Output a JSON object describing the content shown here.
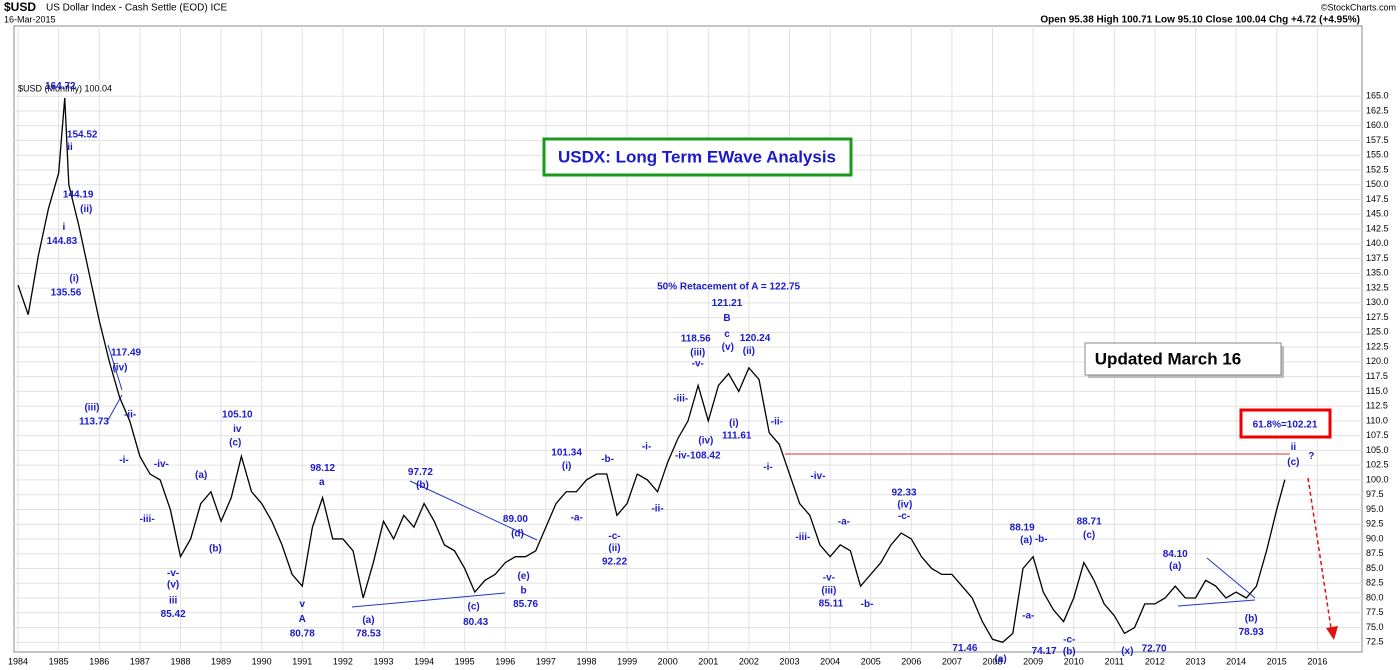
{
  "header": {
    "symbol": "$USD",
    "name": "US Dollar Index - Cash Settle (EOD) ICE",
    "date": "16-Mar-2015",
    "copyright": "©StockCharts.com",
    "quote": "Open 95.38 High 100.71 Low 95.10 Close 100.04 Chg +4.72 (+4.95%)"
  },
  "boxes": {
    "title": "USDX: Long Term EWave Analysis",
    "updated": "Updated March 16",
    "target": "61.8%=102.21"
  },
  "chart_data": {
    "type": "line",
    "xlim": [
      1983.9,
      2017.1
    ],
    "xticks": [
      1984,
      1985,
      1986,
      1987,
      1988,
      1989,
      1990,
      1991,
      1992,
      1993,
      1994,
      1995,
      1996,
      1997,
      1998,
      1999,
      2000,
      2001,
      2002,
      2003,
      2004,
      2005,
      2006,
      2007,
      2008,
      2009,
      2010,
      2011,
      2012,
      2013,
      2014,
      2015,
      2016
    ],
    "ylim": [
      70.85,
      176.9
    ],
    "yticks": [
      72.5,
      {
        "value": 75,
        "label": "75.0"
      },
      77.5,
      {
        "value": 80,
        "label": "80.0"
      },
      82.5,
      {
        "value": 85,
        "label": "85.0"
      },
      87.5,
      {
        "value": 90,
        "label": "90.0"
      },
      92.5,
      {
        "value": 95,
        "label": "95.0"
      },
      97.5,
      {
        "value": 100,
        "label": "100.0"
      },
      102.5,
      {
        "value": 105,
        "label": "105.0"
      },
      107.5,
      {
        "value": 110,
        "label": "110.0"
      },
      112.5,
      {
        "value": 115,
        "label": "115.0"
      },
      117.5,
      {
        "value": 120,
        "label": "120.0"
      },
      122.5,
      {
        "value": 125,
        "label": "125.0"
      },
      127.5,
      {
        "value": 130,
        "label": "130.0"
      },
      132.5,
      {
        "value": 135,
        "label": "135.0"
      },
      137.5,
      {
        "value": 140,
        "label": "140.0"
      },
      142.5,
      {
        "value": 145,
        "label": "145.0"
      },
      147.5,
      {
        "value": 150,
        "label": "150.0"
      },
      152.5,
      {
        "value": 155,
        "label": "155.0"
      },
      157.5,
      {
        "value": 160,
        "label": "160.0"
      },
      162.5,
      {
        "value": 165,
        "label": "165.0"
      }
    ],
    "grid": true,
    "x": [
      1984,
      1984.25,
      1984.5,
      1984.75,
      1985,
      1985.15,
      1985.25,
      1985.5,
      1985.75,
      1986,
      1986.25,
      1986.5,
      1986.75,
      1987,
      1987.25,
      1987.5,
      1987.75,
      1988,
      1988.25,
      1988.5,
      1988.75,
      1989,
      1989.25,
      1989.5,
      1989.75,
      1990,
      1990.25,
      1990.5,
      1990.75,
      1991,
      1991.25,
      1991.5,
      1991.75,
      1992,
      1992.25,
      1992.5,
      1992.75,
      1993,
      1993.25,
      1993.5,
      1993.75,
      1994,
      1994.25,
      1994.5,
      1994.75,
      1995,
      1995.25,
      1995.5,
      1995.75,
      1996,
      1996.25,
      1996.5,
      1996.75,
      1997,
      1997.25,
      1997.5,
      1997.75,
      1998,
      1998.25,
      1998.5,
      1998.75,
      1999,
      1999.25,
      1999.5,
      1999.75,
      2000,
      2000.25,
      2000.5,
      2000.75,
      2001,
      2001.25,
      2001.5,
      2001.75,
      2002,
      2002.25,
      2002.5,
      2002.75,
      2003,
      2003.25,
      2003.5,
      2003.75,
      2004,
      2004.25,
      2004.5,
      2004.75,
      2005,
      2005.25,
      2005.5,
      2005.75,
      2006,
      2006.25,
      2006.5,
      2006.75,
      2007,
      2007.25,
      2007.5,
      2007.75,
      2008,
      2008.25,
      2008.5,
      2008.75,
      2009,
      2009.25,
      2009.5,
      2009.75,
      2010,
      2010.25,
      2010.5,
      2010.75,
      2011,
      2011.25,
      2011.5,
      2011.75,
      2012,
      2012.25,
      2012.5,
      2012.75,
      2013,
      2013.25,
      2013.5,
      2013.75,
      2014,
      2014.25,
      2014.5,
      2014.75,
      2015,
      2015.2
    ],
    "series": [
      {
        "name": "$USD (Monthly) 100.04",
        "color": "#000000",
        "values": [
          133,
          128,
          138,
          146,
          152,
          164.72,
          150,
          143,
          135,
          127,
          120,
          114,
          110,
          104,
          101,
          100,
          95,
          87,
          90,
          96,
          98,
          93,
          97,
          104,
          98,
          96,
          93,
          89,
          84,
          82,
          92,
          97,
          90,
          90,
          88,
          80,
          86,
          93,
          90,
          94,
          92,
          96,
          93,
          89,
          88,
          85,
          81,
          83,
          84,
          86,
          87,
          87,
          88,
          92,
          96,
          98,
          98,
          100,
          101,
          101,
          94,
          96,
          101,
          100,
          98,
          103,
          107,
          110,
          116,
          110,
          116,
          118,
          115,
          119,
          117,
          108,
          106,
          101,
          96,
          94,
          89,
          87,
          89,
          88,
          82,
          84,
          86,
          89,
          91,
          90,
          87,
          85,
          84,
          84,
          82,
          80,
          76,
          73,
          72.5,
          74,
          85,
          87,
          81,
          78,
          76,
          80,
          86,
          83,
          79,
          77,
          74,
          75,
          79,
          79,
          80,
          82,
          80,
          80,
          83,
          82,
          80,
          81,
          80,
          82,
          88,
          95,
          100.04
        ]
      }
    ],
    "annotations": [
      {
        "text": "164.72",
        "x": 1985.04,
        "y": 166.7
      },
      {
        "text": "154.52",
        "x": 1985.58,
        "y": 158.5
      },
      {
        "text": "ii",
        "x": 1985.28,
        "y": 156.3
      },
      {
        "text": "144.19",
        "x": 1985.48,
        "y": 148.3
      },
      {
        "text": "(ii)",
        "x": 1985.68,
        "y": 145.8
      },
      {
        "text": "i",
        "x": 1985.13,
        "y": 142.8
      },
      {
        "text": "144.83",
        "x": 1985.08,
        "y": 140.4
      },
      {
        "text": "(i)",
        "x": 1985.38,
        "y": 134.1
      },
      {
        "text": "135.56",
        "x": 1985.18,
        "y": 131.7
      },
      {
        "text": "117.49",
        "x": 1986.66,
        "y": 121.5
      },
      {
        "text": "(iv)",
        "x": 1986.51,
        "y": 119
      },
      {
        "text": "(iii)",
        "x": 1985.82,
        "y": 112.2
      },
      {
        "text": "113.73",
        "x": 1985.87,
        "y": 109.8
      },
      {
        "text": "-ii-",
        "x": 1986.76,
        "y": 111
      },
      {
        "text": "-i-",
        "x": 1986.61,
        "y": 103.3
      },
      {
        "text": "-iv-",
        "x": 1987.53,
        "y": 102.6
      },
      {
        "text": "-iii-",
        "x": 1987.18,
        "y": 93.3
      },
      {
        "text": "(a)",
        "x": 1988.51,
        "y": 100.8
      },
      {
        "text": "(b)",
        "x": 1988.86,
        "y": 88.3
      },
      {
        "text": "105.10",
        "x": 1989.4,
        "y": 111
      },
      {
        "text": "iv",
        "x": 1989.4,
        "y": 108.6
      },
      {
        "text": "(c)",
        "x": 1989.35,
        "y": 106.3
      },
      {
        "text": "-v-",
        "x": 1987.82,
        "y": 84.2
      },
      {
        "text": "(v)",
        "x": 1987.82,
        "y": 82.2
      },
      {
        "text": "iii",
        "x": 1987.82,
        "y": 79.5
      },
      {
        "text": "85.42",
        "x": 1987.82,
        "y": 77.2
      },
      {
        "text": "98.12",
        "x": 1991.5,
        "y": 102
      },
      {
        "text": "a",
        "x": 1991.48,
        "y": 99.6
      },
      {
        "text": "v",
        "x": 1991,
        "y": 78.9
      },
      {
        "text": "A",
        "x": 1991,
        "y": 76.4
      },
      {
        "text": "80.78",
        "x": 1991,
        "y": 73.9
      },
      {
        "text": "(a)",
        "x": 1992.63,
        "y": 76.2
      },
      {
        "text": "78.53",
        "x": 1992.63,
        "y": 73.9
      },
      {
        "text": "97.72",
        "x": 1993.91,
        "y": 101.3
      },
      {
        "text": "(b)",
        "x": 1993.96,
        "y": 99.1
      },
      {
        "text": "(c)",
        "x": 1995.22,
        "y": 78.5
      },
      {
        "text": "80.43",
        "x": 1995.27,
        "y": 75.9
      },
      {
        "text": "89.00",
        "x": 1996.25,
        "y": 93.3
      },
      {
        "text": "(d)",
        "x": 1996.3,
        "y": 90.9
      },
      {
        "text": "(e)",
        "x": 1996.45,
        "y": 83.7
      },
      {
        "text": "b",
        "x": 1996.45,
        "y": 81.2
      },
      {
        "text": "85.76",
        "x": 1996.5,
        "y": 78.9
      },
      {
        "text": "101.34",
        "x": 1997.51,
        "y": 104.6
      },
      {
        "text": "(i)",
        "x": 1997.51,
        "y": 102.3
      },
      {
        "text": "-a-",
        "x": 1997.76,
        "y": 93.6
      },
      {
        "text": "-b-",
        "x": 1998.52,
        "y": 103.5
      },
      {
        "text": "-c-",
        "x": 1998.69,
        "y": 90.4
      },
      {
        "text": "(ii)",
        "x": 1998.69,
        "y": 88.4
      },
      {
        "text": "92.22",
        "x": 1998.69,
        "y": 86.1
      },
      {
        "text": "-i-",
        "x": 1999.48,
        "y": 105.6
      },
      {
        "text": "-ii-",
        "x": 1999.75,
        "y": 95.1
      },
      {
        "text": "-iii-",
        "x": 2000.32,
        "y": 113.7
      },
      {
        "text": "118.56",
        "x": 2000.69,
        "y": 123.9
      },
      {
        "text": "(iii)",
        "x": 2000.74,
        "y": 121.5
      },
      {
        "text": "-v-",
        "x": 2000.74,
        "y": 119.7
      },
      {
        "text": "(iv)",
        "x": 2000.94,
        "y": 106.6
      },
      {
        "text": "-iv-108.42",
        "x": 2000.74,
        "y": 104.1
      },
      {
        "text": "50% Retacement of A = 122.75",
        "x": 2001.5,
        "y": 132.7
      },
      {
        "text": "121.21",
        "x": 2001.46,
        "y": 129.9
      },
      {
        "text": "B",
        "x": 2001.46,
        "y": 127.4
      },
      {
        "text": "c",
        "x": 2001.46,
        "y": 124.7
      },
      {
        "text": "(v)",
        "x": 2001.48,
        "y": 122.5
      },
      {
        "text": "120.24",
        "x": 2002.15,
        "y": 124
      },
      {
        "text": "(ii)",
        "x": 2002,
        "y": 121.8
      },
      {
        "text": "(i)",
        "x": 2001.63,
        "y": 109.6
      },
      {
        "text": "111.61",
        "x": 2001.7,
        "y": 107.5
      },
      {
        "text": "-ii-",
        "x": 2002.69,
        "y": 109.8
      },
      {
        "text": "-i-",
        "x": 2002.47,
        "y": 102.1
      },
      {
        "text": "-iv-",
        "x": 2003.7,
        "y": 100.6
      },
      {
        "text": "-iii-",
        "x": 2003.33,
        "y": 90.3
      },
      {
        "text": "-a-",
        "x": 2004.34,
        "y": 92.9
      },
      {
        "text": "-v-",
        "x": 2003.97,
        "y": 83.4
      },
      {
        "text": "(iii)",
        "x": 2003.97,
        "y": 81.2
      },
      {
        "text": "85.11",
        "x": 2004.02,
        "y": 79
      },
      {
        "text": "-b-",
        "x": 2004.91,
        "y": 78.9
      },
      {
        "text": "92.33",
        "x": 2005.82,
        "y": 97.8
      },
      {
        "text": "(iv)",
        "x": 2005.84,
        "y": 95.8
      },
      {
        "text": "-c-",
        "x": 2005.82,
        "y": 93.8
      },
      {
        "text": "71.46",
        "x": 2007.32,
        "y": 71.5
      },
      {
        "text": "(a)",
        "x": 2008.2,
        "y": 69.6
      },
      {
        "text": "74.17",
        "x": 2009.27,
        "y": 71
      },
      {
        "text": "88.19",
        "x": 2008.73,
        "y": 91.9
      },
      {
        "text": "(a)",
        "x": 2008.83,
        "y": 89.8
      },
      {
        "text": "-b-",
        "x": 2009.2,
        "y": 89.9
      },
      {
        "text": "-a-",
        "x": 2008.88,
        "y": 77
      },
      {
        "text": "-c-",
        "x": 2009.89,
        "y": 72.9
      },
      {
        "text": "(b)",
        "x": 2009.89,
        "y": 70.9
      },
      {
        "text": "88.71",
        "x": 2010.38,
        "y": 92.9
      },
      {
        "text": "(c)",
        "x": 2010.38,
        "y": 90.6
      },
      {
        "text": "(x)",
        "x": 2011.32,
        "y": 71
      },
      {
        "text": "72.70",
        "x": 2011.98,
        "y": 71.4
      },
      {
        "text": "84.10",
        "x": 2012.5,
        "y": 87.4
      },
      {
        "text": "(a)",
        "x": 2012.5,
        "y": 85.4
      },
      {
        "text": "(b)",
        "x": 2014.37,
        "y": 76.5
      },
      {
        "text": "78.93",
        "x": 2014.37,
        "y": 74.2
      },
      {
        "text": "ii",
        "x": 2015.41,
        "y": 105.5
      },
      {
        "text": "(c)",
        "x": 2015.41,
        "y": 103
      },
      {
        "text": "?",
        "x": 2015.85,
        "y": 104
      }
    ]
  }
}
